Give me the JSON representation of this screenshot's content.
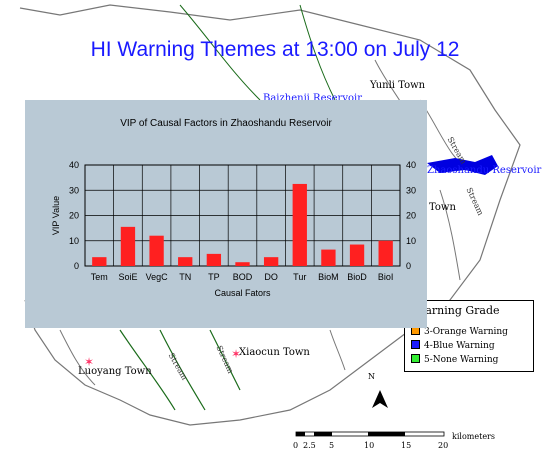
{
  "page": {
    "title": "HI Warning Themes at 13:00 on July 12"
  },
  "map": {
    "places": [
      {
        "name": "Yunli Town"
      },
      {
        "name": "Baizhenji Reservoir"
      },
      {
        "name": "Zhaoshandu Reservoir"
      },
      {
        "name": "Luoyang Town"
      },
      {
        "name": "Xiaocun Town"
      },
      {
        "name": "Town"
      }
    ],
    "rivers": [
      "Stream",
      "Stream",
      "Stream",
      "Stream"
    ],
    "north_label": "N",
    "colors": {
      "reservoir": "#0000e0",
      "boundary": "#777777",
      "river_edge": "#1a6b1a",
      "town_marker": "#ff3366"
    }
  },
  "legend": {
    "title": "Warning Grade",
    "items": [
      {
        "label": "3-Orange Warning",
        "color": "#ff9900"
      },
      {
        "label": "4-Blue Warning",
        "color": "#1a1aff"
      },
      {
        "label": "5-None Warning",
        "color": "#33ee33"
      }
    ]
  },
  "scale_bar": {
    "ticks": [
      "0",
      "2.5",
      "5",
      "10",
      "15",
      "20"
    ],
    "unit": "kilometers"
  },
  "chart_data": {
    "type": "bar",
    "title": "VIP of Causal Factors in Zhaoshandu Reservoir",
    "xlabel": "Causal Fators",
    "ylabel": "VIP Value",
    "categories": [
      "Tem",
      "SoiE",
      "VegC",
      "TN",
      "TP",
      "BOD",
      "DO",
      "Tur",
      "BioM",
      "BioD",
      "BioI"
    ],
    "values": [
      3.5,
      15.5,
      12,
      3.5,
      4.8,
      1.5,
      3.5,
      32.5,
      6.5,
      8.5,
      10
    ],
    "ylim": [
      0,
      40
    ],
    "yticks": [
      0,
      10,
      20,
      30,
      40
    ],
    "y2ticks": [
      0,
      10,
      20,
      30,
      40
    ],
    "grid": true,
    "bar_color": "#ff2020",
    "background": "#b9c9d5"
  }
}
